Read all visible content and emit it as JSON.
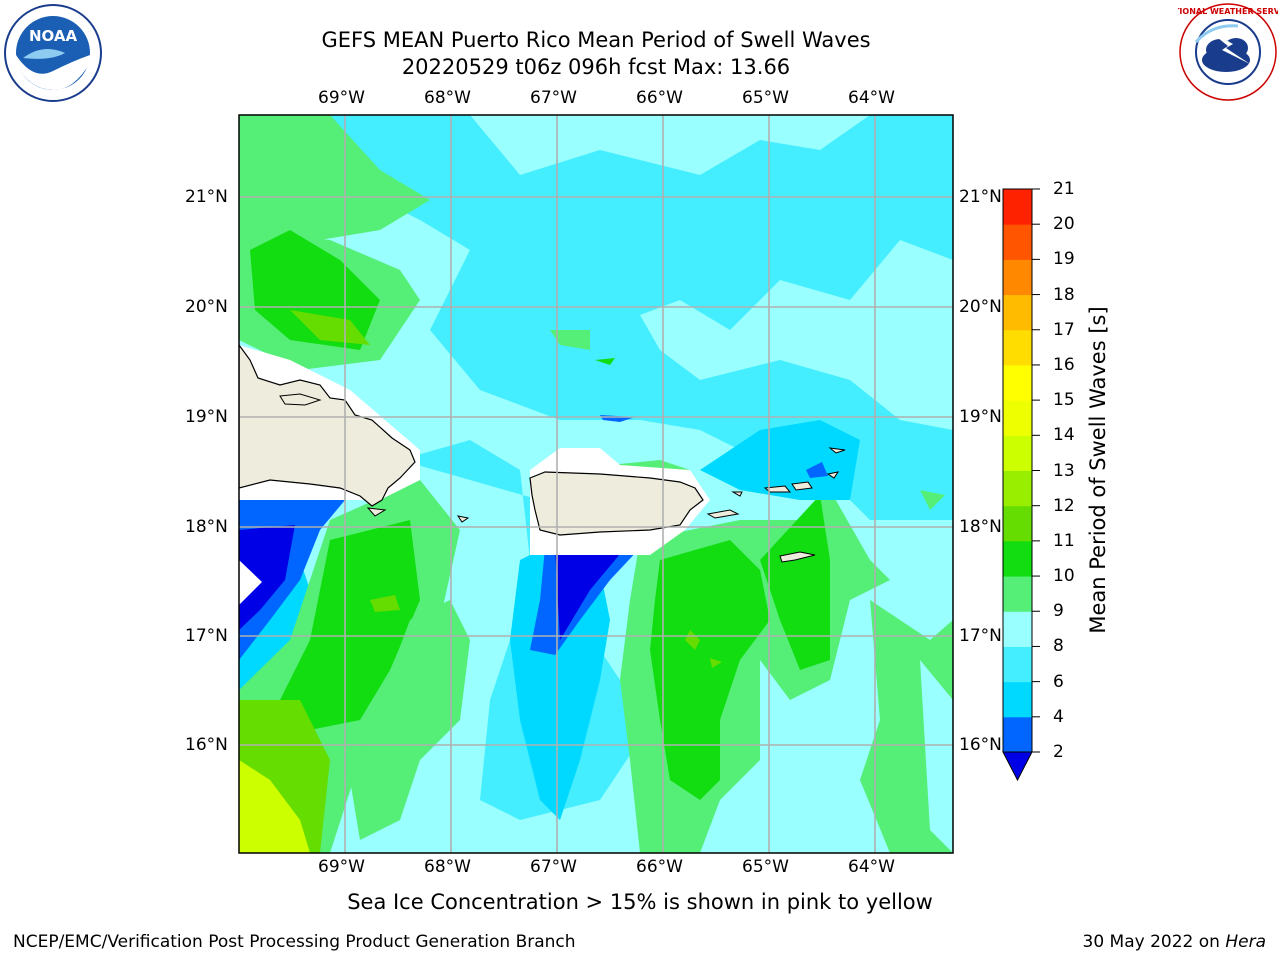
{
  "header": {
    "title_line1": "GEFS MEAN Puerto Rico Mean Period of Swell Waves",
    "title_line2": "20220529 t06z 096h fcst   Max: 13.66"
  },
  "map": {
    "lon_labels": [
      "69°W",
      "68°W",
      "67°W",
      "66°W",
      "65°W",
      "64°W"
    ],
    "lat_labels": [
      "21°N",
      "20°N",
      "19°N",
      "18°N",
      "17°N",
      "16°N"
    ],
    "field_note": "Sea Ice Concentration > 15% is shown in pink to yellow"
  },
  "colorbar": {
    "label": "Mean Period of Swell Waves [s]",
    "ticks": [
      "21",
      "20",
      "19",
      "18",
      "17",
      "16",
      "15",
      "14",
      "13",
      "12",
      "11",
      "10",
      "9",
      "8",
      "6",
      "4",
      "2"
    ],
    "colors": [
      "#0000e6",
      "#0066ff",
      "#00d9ff",
      "#44eeff",
      "#99ffff",
      "#55ee77",
      "#11dd11",
      "#66dd00",
      "#99ee00",
      "#ccff00",
      "#eeff00",
      "#ffff00",
      "#ffdd00",
      "#ffbb00",
      "#ff8800",
      "#ff5500",
      "#ff2200",
      "#ee0000"
    ]
  },
  "logos": {
    "noaa_text": "NOAA",
    "nws_text": "NATIONAL WEATHER SERVICE"
  },
  "footer": {
    "left": "NCEP/EMC/Verification Post Processing Product Generation Branch",
    "right_date": "30 May 2022 on",
    "right_host": "Hera"
  }
}
